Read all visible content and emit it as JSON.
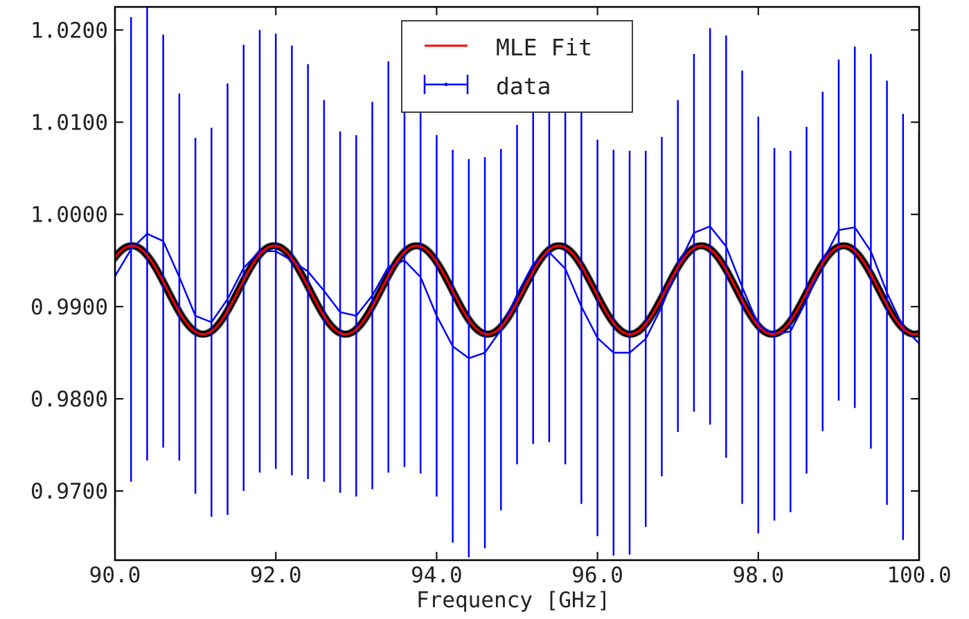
{
  "chart_data": {
    "type": "line",
    "title": "",
    "xlabel": "Frequency [GHz]",
    "ylabel": "",
    "xlim": [
      90.0,
      100.0
    ],
    "ylim": [
      0.9625,
      1.0225
    ],
    "x_ticks": [
      90.0,
      92.0,
      94.0,
      96.0,
      98.0,
      100.0
    ],
    "x_tick_labels": [
      "90.0",
      "92.0",
      "94.0",
      "96.0",
      "98.0",
      "100.0"
    ],
    "y_ticks": [
      0.97,
      0.98,
      0.99,
      1.0,
      1.01,
      1.02
    ],
    "y_tick_labels": [
      "0.9700",
      "0.9800",
      "0.9900",
      "1.0000",
      "1.0100",
      "1.0200"
    ],
    "grid": false,
    "legend_position": "top-center",
    "legend": [
      "MLE Fit",
      "data"
    ],
    "colors": {
      "fit": "#ff0000",
      "data": "#0000ff",
      "samples": "#000000"
    },
    "series": [
      {
        "name": "MLE Fit",
        "kind": "model",
        "mean": 0.9918,
        "amplitude": 0.0048,
        "period_ghz": 1.77,
        "peak_at_ghz": 91.98
      },
      {
        "name": "data",
        "kind": "errorbar",
        "x": [
          90.0,
          90.2,
          90.4,
          90.6,
          90.8,
          91.0,
          91.2,
          91.4,
          91.6,
          91.8,
          92.0,
          92.2,
          92.4,
          92.6,
          92.8,
          93.0,
          93.2,
          93.4,
          93.6,
          93.8,
          94.0,
          94.2,
          94.4,
          94.6,
          94.8,
          95.0,
          95.2,
          95.4,
          95.6,
          95.8,
          96.0,
          96.2,
          96.4,
          96.6,
          96.8,
          97.0,
          97.2,
          97.4,
          97.6,
          97.8,
          98.0,
          98.2,
          98.4,
          98.6,
          98.8,
          99.0,
          99.2,
          99.4,
          99.6,
          99.8,
          100.0
        ],
        "y": [
          0.9933,
          0.9962,
          0.9979,
          0.9971,
          0.9932,
          0.989,
          0.9883,
          0.9908,
          0.9942,
          0.996,
          0.996,
          0.995,
          0.9938,
          0.9917,
          0.9894,
          0.989,
          0.9912,
          0.9943,
          0.995,
          0.9932,
          0.989,
          0.9857,
          0.9844,
          0.985,
          0.9875,
          0.9913,
          0.9946,
          0.9959,
          0.9941,
          0.99,
          0.9866,
          0.985,
          0.985,
          0.9865,
          0.99,
          0.9944,
          0.998,
          0.9987,
          0.9965,
          0.9921,
          0.988,
          0.987,
          0.9873,
          0.9907,
          0.9949,
          0.9983,
          0.9986,
          0.996,
          0.9915,
          0.9878,
          0.986
        ],
        "yerr": [
          0.0253,
          0.0252,
          0.0246,
          0.0224,
          0.0199,
          0.0193,
          0.0211,
          0.0234,
          0.0242,
          0.024,
          0.0236,
          0.0233,
          0.0225,
          0.0207,
          0.0196,
          0.0196,
          0.021,
          0.0223,
          0.0224,
          0.0213,
          0.0196,
          0.0213,
          0.0216,
          0.0212,
          0.0196,
          0.0184,
          0.0195,
          0.0206,
          0.0212,
          0.0214,
          0.0215,
          0.022,
          0.0219,
          0.0204,
          0.0184,
          0.018,
          0.0194,
          0.0215,
          0.0229,
          0.0235,
          0.0226,
          0.0202,
          0.0196,
          0.0188,
          0.0184,
          0.0185,
          0.0196,
          0.0214,
          0.023,
          0.0231,
          0.023
        ]
      }
    ]
  }
}
